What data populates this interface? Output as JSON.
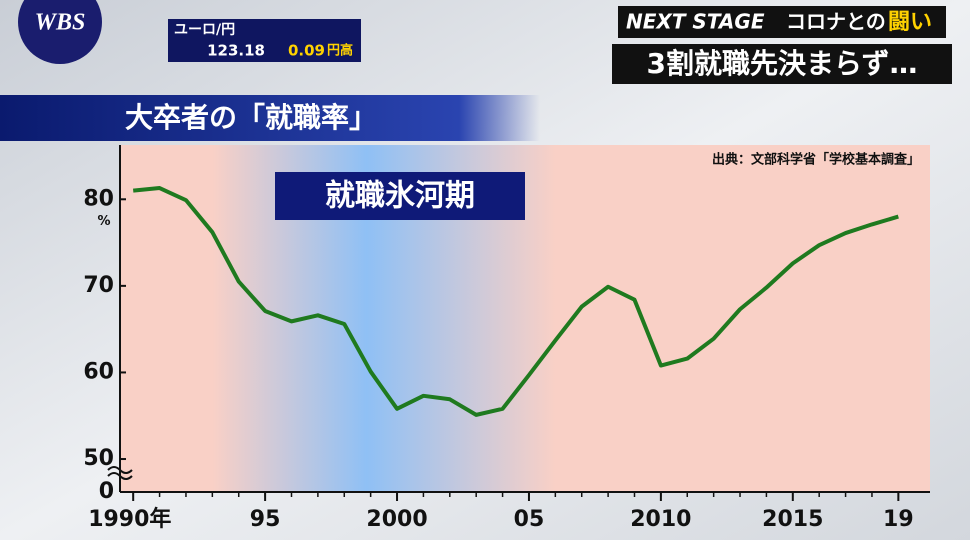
{
  "logo": "WBS",
  "ticker": {
    "pair": "ユーロ/円",
    "rate": "123.18",
    "change": "0.09",
    "direction": "円高"
  },
  "header": {
    "series": "NEXT STAGE",
    "topic_prefix": "コロナとの",
    "topic_emphasis": "闘い",
    "headline": "3割就職先決まらず…"
  },
  "chart_data": {
    "type": "line",
    "title": "大卒者の「就職率」",
    "source": "出典：文部科学省「学校基本調査」",
    "annotation": "就職氷河期",
    "shaded_span": [
      1993,
      2006
    ],
    "x": [
      1990,
      1991,
      1992,
      1993,
      1994,
      1995,
      1996,
      1997,
      1998,
      1999,
      2000,
      2001,
      2002,
      2003,
      2004,
      2005,
      2006,
      2007,
      2008,
      2009,
      2010,
      2011,
      2012,
      2013,
      2014,
      2015,
      2016,
      2017,
      2018,
      2019
    ],
    "series": [
      {
        "name": "就職率",
        "color": "#1f7a1f",
        "values": [
          81.0,
          81.3,
          79.9,
          76.2,
          70.5,
          67.1,
          65.9,
          66.6,
          65.6,
          60.1,
          55.8,
          57.3,
          56.9,
          55.1,
          55.8,
          59.7,
          63.7,
          67.6,
          69.9,
          68.4,
          60.8,
          61.6,
          63.9,
          67.3,
          69.8,
          72.6,
          74.7,
          76.1,
          77.1,
          78.0
        ]
      }
    ],
    "xlim": [
      1989.5,
      2020.2
    ],
    "xticks": [
      {
        "value": 1990,
        "label": "1990年"
      },
      {
        "value": 1995,
        "label": "95"
      },
      2000,
      {
        "value": 2005,
        "label": "05"
      },
      2010,
      2015,
      {
        "value": 2019,
        "label": "19"
      }
    ],
    "ylim": [
      47,
      85
    ],
    "yticks": [
      0,
      50,
      60,
      70,
      80
    ],
    "y_unit": "%",
    "axis_break": true
  }
}
